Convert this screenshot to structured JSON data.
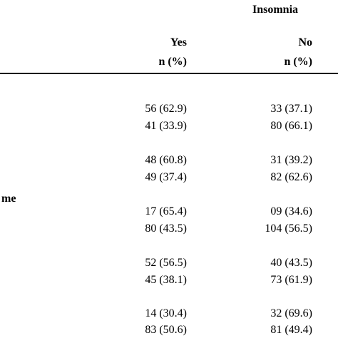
{
  "header": {
    "group_label": "Insomnia",
    "col_yes": "Yes",
    "col_no": "No",
    "col_yes_unit": "n (%)",
    "col_no_unit": "n (%)"
  },
  "row_label_fragment": "me",
  "rows": [
    {
      "yes": "56 (62.9)",
      "no": "33 (37.1)"
    },
    {
      "yes": "41 (33.9)",
      "no": "80 (66.1)"
    },
    {
      "yes": "48 (60.8)",
      "no": "31 (39.2)"
    },
    {
      "yes": "49 (37.4)",
      "no": "82 (62.6)"
    },
    {
      "yes": "17 (65.4)",
      "no": "09 (34.6)"
    },
    {
      "yes": "80 (43.5)",
      "no": "104 (56.5)"
    },
    {
      "yes": "52 (56.5)",
      "no": "40 (43.5)"
    },
    {
      "yes": "45 (38.1)",
      "no": "73 (61.9)"
    },
    {
      "yes": "14 (30.4)",
      "no": "32 (69.6)"
    },
    {
      "yes": "83 (50.6)",
      "no": "81 (49.4)"
    }
  ]
}
